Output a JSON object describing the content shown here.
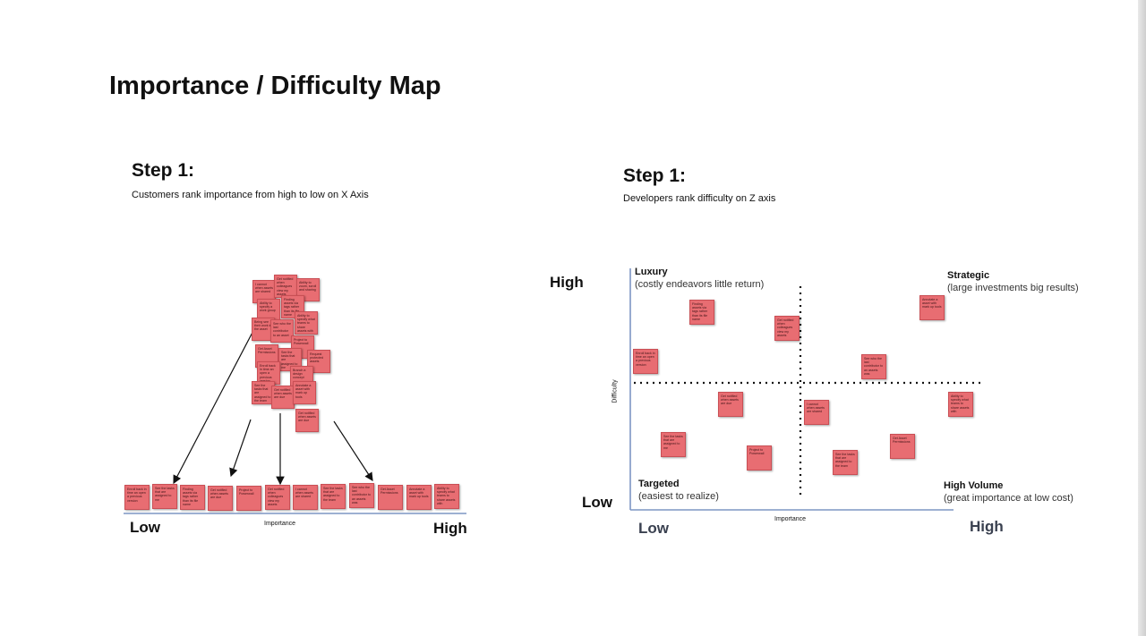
{
  "title": "Importance / Difficulty Map",
  "left_panel": {
    "step_title": "Step 1:",
    "subtitle": "Customers rank importance from high to low on X Axis",
    "low_label": "Low",
    "high_label": "High",
    "axis_label": "Importance",
    "pile_notes": [
      "I cannot when assets are shared",
      "Get notified when colleagues view my assets",
      "Ability to zoom, scroll and sharing",
      "Ability to specify a work group",
      "Finding assets via tags rather than its file name",
      "Being see their work in the asset",
      "See who the last contributor to an asset",
      "Ability to specify what teams to share assets with",
      "Project to Powerwall",
      "Get Asset Permissions",
      "See the tasks that are assigned to me",
      "Request protected assets",
      "Enroll back in time an open a previous version",
      "Branch a design concept",
      "See the tasks that are assigned to the team",
      "Get notified when assets are due",
      "Annotate a asset with mark up tools",
      "Get notified when assets are due"
    ],
    "row_notes": [
      "Enroll back in time an open a previous version",
      "See the tasks that are assigned to me",
      "Finding assets via tags rather than its file name",
      "Get notified when assets are due",
      "Project to Powerwall",
      "Get notified when colleagues view my assets",
      "I cannot when assets are shared",
      "See the tasks that are assigned to the team",
      "See who the last contributor to an assets was",
      "Get Asset Permissions",
      "Annotate a asset with mark up tools",
      "Ability to specify what teams to share assets with"
    ]
  },
  "right_panel": {
    "step_title": "Step 1:",
    "subtitle": "Developers rank difficulty on Z axis",
    "y_high": "High",
    "y_low": "Low",
    "x_low": "Low",
    "x_high": "High",
    "x_axis_label": "Importance",
    "y_axis_label": "Difficulty",
    "quadrants": {
      "luxury": {
        "title": "Luxury",
        "subtitle": "(costly endeavors little return)"
      },
      "strategic": {
        "title": "Strategic",
        "subtitle": "(large investments big results)"
      },
      "targeted": {
        "title": "Targeted",
        "subtitle": "(easiest to realize)"
      },
      "high_volume": {
        "title": "High Volume",
        "subtitle": "(great importance at low cost)"
      }
    },
    "notes": [
      "Finding assets via tags rather than its file name",
      "Get notified when colleagues view my assets",
      "Annotate a asset with mark up tools",
      "Enroll back in time an open a previous version",
      "See who the last contributor to an assets was",
      "Get notified when assets are due",
      "I cannot when assets are shared",
      "Ability to specify what teams to share assets with",
      "See the tasks that are assigned to me",
      "Project to Powerwall",
      "See the tasks that are assigned to the team",
      "Get Asset Permissions"
    ]
  },
  "colors": {
    "sticky": "#e86d72",
    "axis_blue": "#7d95c4"
  }
}
